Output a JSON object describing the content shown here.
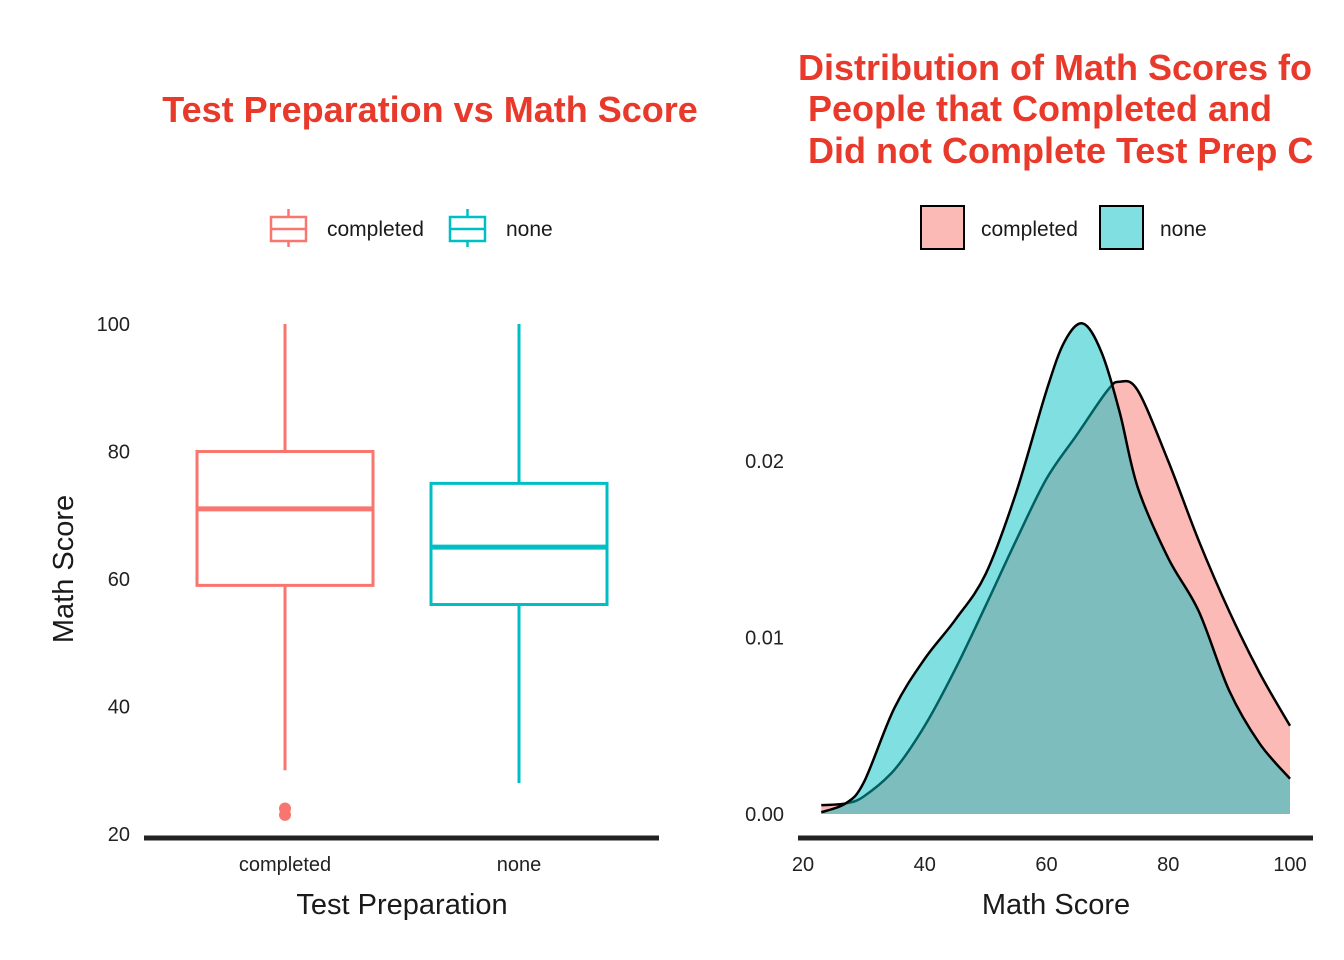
{
  "colors": {
    "title": "#E8392B",
    "completed": "#F8766D",
    "none": "#00BFC4",
    "axis": "#222222"
  },
  "chart_data": [
    {
      "type": "box",
      "title": "Test Preparation vs Math Score",
      "xlabel": "Test Preparation",
      "ylabel": "Math Score",
      "ylim": [
        20,
        100
      ],
      "yticks": [
        20,
        40,
        60,
        80,
        100
      ],
      "legend_position": "top",
      "legend": [
        "completed",
        "none"
      ],
      "categories": [
        "completed",
        "none"
      ],
      "boxes": [
        {
          "name": "completed",
          "min": 30,
          "q1": 59,
          "median": 71,
          "q3": 80,
          "max": 100,
          "outliers": [
            23,
            24
          ]
        },
        {
          "name": "none",
          "min": 28,
          "q1": 56,
          "median": 65,
          "q3": 75,
          "max": 100,
          "outliers": []
        }
      ]
    },
    {
      "type": "area",
      "title_lines": [
        "Distribution of Math Scores fo",
        " People that Completed and",
        " Did not Complete Test Prep C"
      ],
      "xlabel": "Math Score",
      "ylabel": "",
      "xlim": [
        20,
        100
      ],
      "ylim": [
        0,
        0.028
      ],
      "xticks": [
        20,
        40,
        60,
        80,
        100
      ],
      "yticks": [
        0.0,
        0.01,
        0.02
      ],
      "ytick_labels": [
        "0.00",
        "0.01",
        "0.02"
      ],
      "legend_position": "top",
      "legend": [
        "completed",
        "none"
      ],
      "series": [
        {
          "name": "completed",
          "x": [
            23,
            27,
            30,
            35,
            40,
            45,
            50,
            55,
            60,
            65,
            70,
            72,
            75,
            80,
            85,
            90,
            95,
            100
          ],
          "y": [
            0.0005,
            0.0006,
            0.001,
            0.0025,
            0.005,
            0.0082,
            0.0118,
            0.0155,
            0.019,
            0.0215,
            0.024,
            0.0245,
            0.024,
            0.02,
            0.0155,
            0.0115,
            0.008,
            0.005
          ]
        },
        {
          "name": "none",
          "x": [
            23,
            27,
            30,
            35,
            40,
            45,
            50,
            55,
            60,
            63,
            66,
            69,
            72,
            75,
            80,
            85,
            90,
            95,
            100
          ],
          "y": [
            0.0001,
            0.0006,
            0.0018,
            0.006,
            0.0088,
            0.011,
            0.0136,
            0.0182,
            0.024,
            0.0268,
            0.0278,
            0.0262,
            0.0228,
            0.0185,
            0.0145,
            0.0115,
            0.007,
            0.004,
            0.002
          ]
        }
      ]
    }
  ]
}
